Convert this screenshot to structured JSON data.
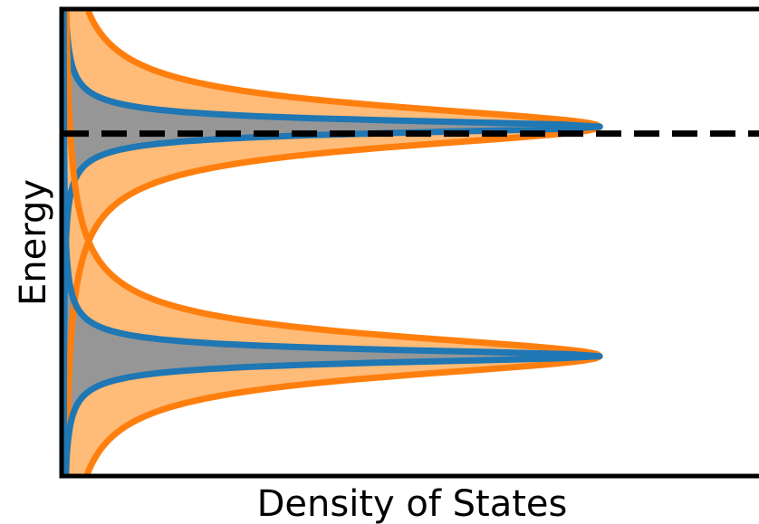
{
  "chart_data": {
    "type": "area",
    "title": "",
    "xlabel": "Density of States",
    "ylabel": "Energy",
    "xticks": [],
    "yticks": [],
    "grid": false,
    "legend": "none",
    "orientation": "horizontal (density on x, energy on y)",
    "xlim": [
      0,
      1.3
    ],
    "ylim": [
      0,
      10
    ],
    "reference_line": {
      "y": 7.35,
      "style": "dashed",
      "color": "#000000"
    },
    "peaks": [
      {
        "center": 7.5,
        "height": 1.0
      },
      {
        "center": 2.55,
        "height": 1.0
      }
    ],
    "series": [
      {
        "color": "#ff7f0e",
        "fill": "#ffbb78",
        "half_width": 0.55,
        "profile": "lorentzian"
      },
      {
        "color": "#1f77b4",
        "fill": "#969696",
        "half_width": 0.17,
        "profile": "lorentzian"
      }
    ]
  }
}
